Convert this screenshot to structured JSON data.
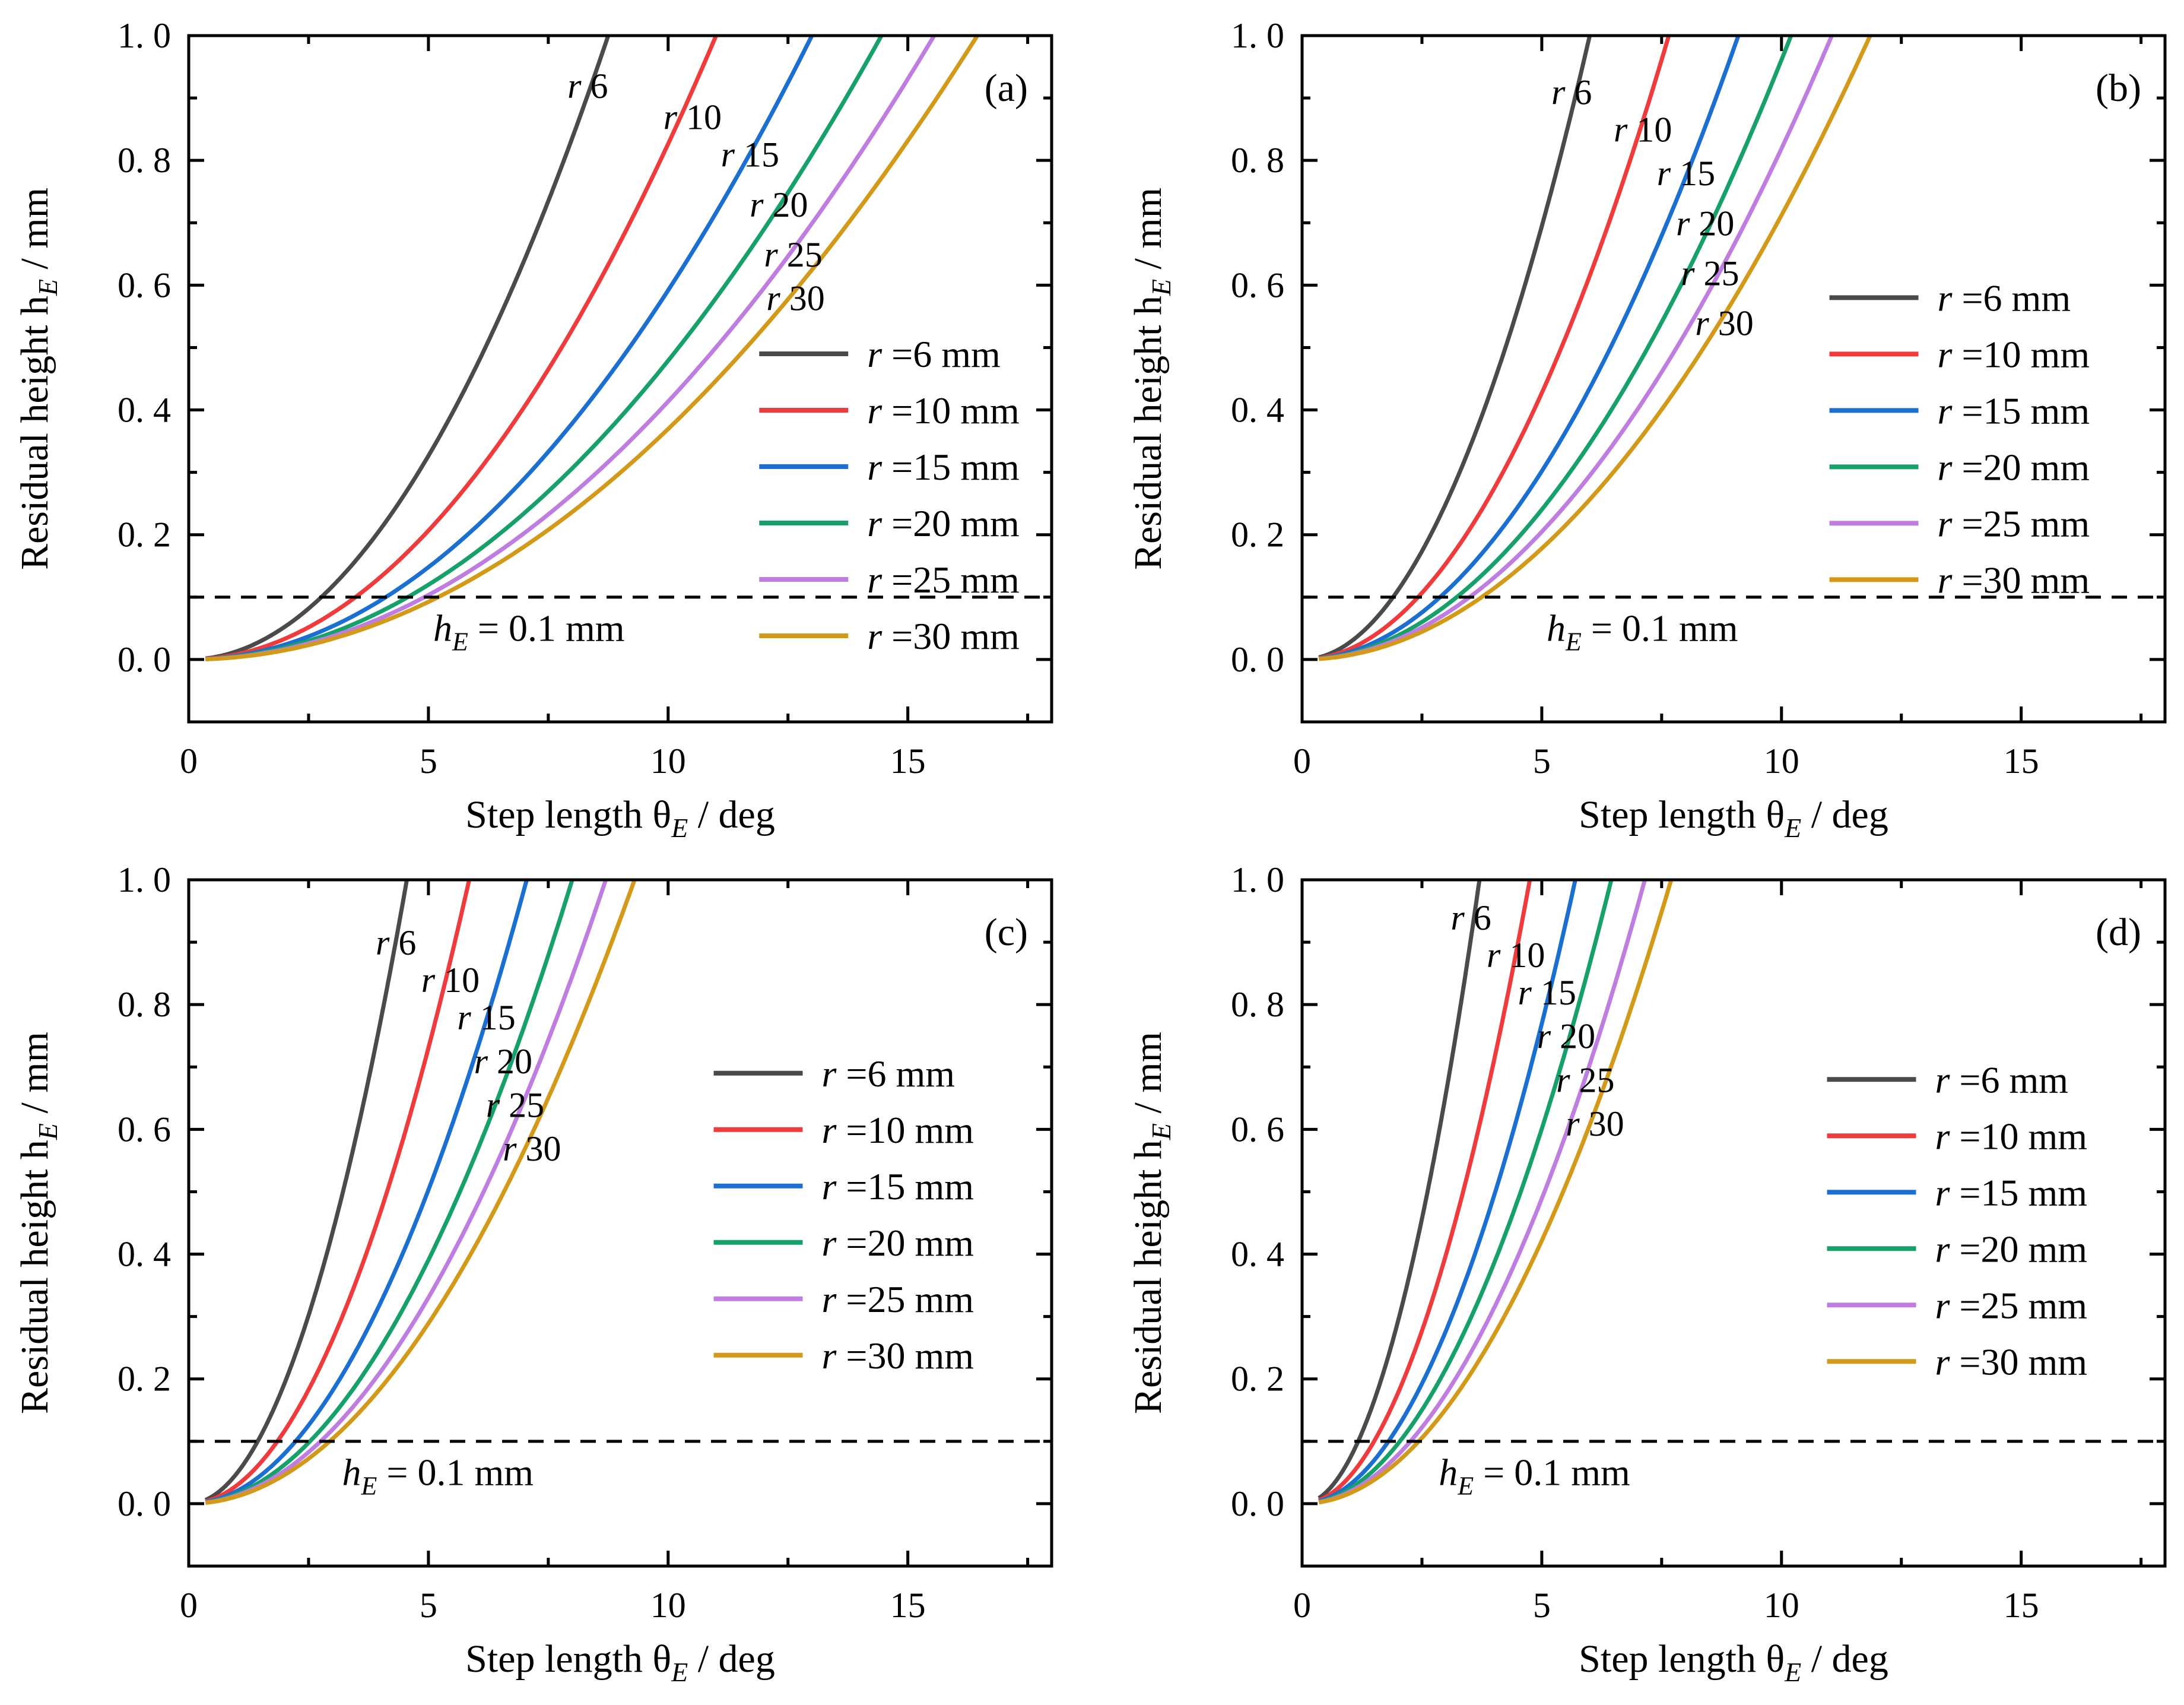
{
  "figure": {
    "colors": {
      "r6": "#4a4a4a",
      "r10": "#ef3b3b",
      "r15": "#1a6fd1",
      "r20": "#16a06a",
      "r25": "#bf7de0",
      "r30": "#d39a1a",
      "axis": "#000000",
      "threshold": "#000000"
    }
  },
  "chart_data": [
    {
      "id": "a",
      "type": "line",
      "panel_label": "(a)",
      "xlabel": "Step length θ",
      "xlabel_sub": "E",
      "xlabel_unit": " / deg",
      "ylabel": "Residual height h",
      "ylabel_sub": "E",
      "ylabel_unit": " / mm",
      "xlim": [
        0,
        18
      ],
      "ylim": [
        -0.1,
        1.0
      ],
      "xticks": [
        0,
        5,
        10,
        15
      ],
      "xtick_labels": [
        "0",
        "5",
        "10",
        "15"
      ],
      "yticks": [
        0.0,
        0.2,
        0.4,
        0.6,
        0.8,
        1.0
      ],
      "ytick_labels": [
        "0. 0",
        "0. 2",
        "0. 4",
        "0. 6",
        "0. 8",
        "1. 0"
      ],
      "threshold": {
        "y": 0.1,
        "label": "h",
        "label_sub": "E",
        "label_rest": " = 0.1 mm",
        "label_x": 5.1,
        "label_y": 0.03
      },
      "legend": {
        "position": "lower-right",
        "x": 11.9,
        "y": 0.49,
        "title_prefix": "r"
      },
      "series": [
        {
          "name": "r =6 mm",
          "label_text": "=6 mm",
          "radius": 6,
          "color_key": "r6",
          "xmax": 8.75,
          "curve_label_r": "r",
          "curve_label_num": "6",
          "label_x": 7.9,
          "label_y": 0.9
        },
        {
          "name": "r =10 mm",
          "label_text": "=10 mm",
          "radius": 10,
          "color_key": "r10",
          "xmax": 11.0,
          "curve_label_r": "r",
          "curve_label_num": "10",
          "label_x": 9.9,
          "label_y": 0.85
        },
        {
          "name": "r =15 mm",
          "label_text": "=15 mm",
          "radius": 15,
          "color_key": "r15",
          "xmax": 13.0,
          "curve_label_r": "r",
          "curve_label_num": "15",
          "label_x": 11.1,
          "label_y": 0.79
        },
        {
          "name": "r =20 mm",
          "label_text": "=20 mm",
          "radius": 20,
          "color_key": "r20",
          "xmax": 14.45,
          "curve_label_r": "r",
          "curve_label_num": "20",
          "label_x": 11.7,
          "label_y": 0.71
        },
        {
          "name": "r =25 mm",
          "label_text": "=25 mm",
          "radius": 25,
          "color_key": "r25",
          "xmax": 15.55,
          "curve_label_r": "r",
          "curve_label_num": "25",
          "label_x": 12.0,
          "label_y": 0.63
        },
        {
          "name": "r =30 mm",
          "label_text": "=30 mm",
          "radius": 30,
          "color_key": "r30",
          "xmax": 16.45,
          "curve_label_r": "r",
          "curve_label_num": "30",
          "label_x": 12.05,
          "label_y": 0.56
        }
      ]
    },
    {
      "id": "b",
      "type": "line",
      "panel_label": "(b)",
      "xlabel": "Step length θ",
      "xlabel_sub": "E",
      "xlabel_unit": " / deg",
      "ylabel": "Residual height h",
      "ylabel_sub": "E",
      "ylabel_unit": " / mm",
      "xlim": [
        0,
        18
      ],
      "ylim": [
        -0.1,
        1.0
      ],
      "xticks": [
        0,
        5,
        10,
        15
      ],
      "xtick_labels": [
        "0",
        "5",
        "10",
        "15"
      ],
      "yticks": [
        0.0,
        0.2,
        0.4,
        0.6,
        0.8,
        1.0
      ],
      "ytick_labels": [
        "0. 0",
        "0. 2",
        "0. 4",
        "0. 6",
        "0. 8",
        "1. 0"
      ],
      "threshold": {
        "y": 0.1,
        "label": "h",
        "label_sub": "E",
        "label_rest": " = 0.1 mm",
        "label_x": 5.1,
        "label_y": 0.03
      },
      "legend": {
        "position": "right",
        "x": 11.0,
        "y": 0.58,
        "title_prefix": "r"
      },
      "series": [
        {
          "name": "r =6 mm",
          "label_text": "=6 mm",
          "radius": 6,
          "color_key": "r6",
          "xmax": 6.0,
          "curve_label_r": "r",
          "curve_label_num": "6",
          "label_x": 5.2,
          "label_y": 0.89
        },
        {
          "name": "r =10 mm",
          "label_text": "=10 mm",
          "radius": 10,
          "color_key": "r10",
          "xmax": 7.65,
          "curve_label_r": "r",
          "curve_label_num": "10",
          "label_x": 6.5,
          "label_y": 0.83
        },
        {
          "name": "r =15 mm",
          "label_text": "=15 mm",
          "radius": 15,
          "color_key": "r15",
          "xmax": 9.1,
          "curve_label_r": "r",
          "curve_label_num": "15",
          "label_x": 7.4,
          "label_y": 0.76
        },
        {
          "name": "r =20 mm",
          "label_text": "=20 mm",
          "radius": 20,
          "color_key": "r20",
          "xmax": 10.2,
          "curve_label_r": "r",
          "curve_label_num": "20",
          "label_x": 7.8,
          "label_y": 0.68
        },
        {
          "name": "r =25 mm",
          "label_text": "=25 mm",
          "radius": 25,
          "color_key": "r25",
          "xmax": 11.05,
          "curve_label_r": "r",
          "curve_label_num": "25",
          "label_x": 7.9,
          "label_y": 0.6
        },
        {
          "name": "r =30 mm",
          "label_text": "=30 mm",
          "radius": 30,
          "color_key": "r30",
          "xmax": 11.85,
          "curve_label_r": "r",
          "curve_label_num": "30",
          "label_x": 8.2,
          "label_y": 0.52
        }
      ]
    },
    {
      "id": "c",
      "type": "line",
      "panel_label": "(c)",
      "xlabel": "Step length θ",
      "xlabel_sub": "E",
      "xlabel_unit": " / deg",
      "ylabel": "Residual height h",
      "ylabel_sub": "E",
      "ylabel_unit": " / mm",
      "xlim": [
        0,
        18
      ],
      "ylim": [
        -0.1,
        1.0
      ],
      "xticks": [
        0,
        5,
        10,
        15
      ],
      "xtick_labels": [
        "0",
        "5",
        "10",
        "15"
      ],
      "yticks": [
        0.0,
        0.2,
        0.4,
        0.6,
        0.8,
        1.0
      ],
      "ytick_labels": [
        "0. 0",
        "0. 2",
        "0. 4",
        "0. 6",
        "0. 8",
        "1. 0"
      ],
      "threshold": {
        "y": 0.1,
        "label": "h",
        "label_sub": "E",
        "label_rest": " = 0.1 mm",
        "label_x": 3.2,
        "label_y": 0.03
      },
      "legend": {
        "position": "center-right",
        "x": 10.95,
        "y": 0.69,
        "title_prefix": "r"
      },
      "series": [
        {
          "name": "r =6 mm",
          "label_text": "=6 mm",
          "radius": 6,
          "color_key": "r6",
          "xmax": 4.55,
          "curve_label_r": "r",
          "curve_label_num": "6",
          "label_x": 3.9,
          "label_y": 0.88
        },
        {
          "name": "r =10 mm",
          "label_text": "=10 mm",
          "radius": 10,
          "color_key": "r10",
          "xmax": 5.85,
          "curve_label_r": "r",
          "curve_label_num": "10",
          "label_x": 4.85,
          "label_y": 0.82
        },
        {
          "name": "r =15 mm",
          "label_text": "=15 mm",
          "radius": 15,
          "color_key": "r15",
          "xmax": 7.05,
          "curve_label_r": "r",
          "curve_label_num": "15",
          "label_x": 5.6,
          "label_y": 0.76
        },
        {
          "name": "r =20 mm",
          "label_text": "=20 mm",
          "radius": 20,
          "color_key": "r20",
          "xmax": 8.0,
          "curve_label_r": "r",
          "curve_label_num": "20",
          "label_x": 5.95,
          "label_y": 0.69
        },
        {
          "name": "r =25 mm",
          "label_text": "=25 mm",
          "radius": 25,
          "color_key": "r25",
          "xmax": 8.7,
          "curve_label_r": "r",
          "curve_label_num": "25",
          "label_x": 6.2,
          "label_y": 0.62
        },
        {
          "name": "r =30 mm",
          "label_text": "=30 mm",
          "radius": 30,
          "color_key": "r30",
          "xmax": 9.3,
          "curve_label_r": "r",
          "curve_label_num": "30",
          "label_x": 6.55,
          "label_y": 0.55
        }
      ]
    },
    {
      "id": "d",
      "type": "line",
      "panel_label": "(d)",
      "xlabel": "Step length θ",
      "xlabel_sub": "E",
      "xlabel_unit": " / deg",
      "ylabel": "Residual height h",
      "ylabel_sub": "E",
      "ylabel_unit": " / mm",
      "xlim": [
        0,
        18
      ],
      "ylim": [
        -0.1,
        1.0
      ],
      "xticks": [
        0,
        5,
        10,
        15
      ],
      "xtick_labels": [
        "0",
        "5",
        "10",
        "15"
      ],
      "yticks": [
        0.0,
        0.2,
        0.4,
        0.6,
        0.8,
        1.0
      ],
      "ytick_labels": [
        "0. 0",
        "0. 2",
        "0. 4",
        "0. 6",
        "0. 8",
        "1. 0"
      ],
      "threshold": {
        "y": 0.1,
        "label": "h",
        "label_sub": "E",
        "label_rest": " = 0.1 mm",
        "label_x": 2.85,
        "label_y": 0.03
      },
      "legend": {
        "position": "center-right",
        "x": 10.95,
        "y": 0.68,
        "title_prefix": "r"
      },
      "series": [
        {
          "name": "r =6 mm",
          "label_text": "=6 mm",
          "radius": 6,
          "color_key": "r6",
          "xmax": 3.7,
          "curve_label_r": "r",
          "curve_label_num": "6",
          "label_x": 3.1,
          "label_y": 0.92
        },
        {
          "name": "r =10 mm",
          "label_text": "=10 mm",
          "radius": 10,
          "color_key": "r10",
          "xmax": 4.75,
          "curve_label_r": "r",
          "curve_label_num": "10",
          "label_x": 3.85,
          "label_y": 0.86
        },
        {
          "name": "r =15 mm",
          "label_text": "=15 mm",
          "radius": 15,
          "color_key": "r15",
          "xmax": 5.7,
          "curve_label_r": "r",
          "curve_label_num": "15",
          "label_x": 4.5,
          "label_y": 0.8
        },
        {
          "name": "r =20 mm",
          "label_text": "=20 mm",
          "radius": 20,
          "color_key": "r20",
          "xmax": 6.45,
          "curve_label_r": "r",
          "curve_label_num": "20",
          "label_x": 4.9,
          "label_y": 0.73
        },
        {
          "name": "r =25 mm",
          "label_text": "=25 mm",
          "radius": 25,
          "color_key": "r25",
          "xmax": 7.15,
          "curve_label_r": "r",
          "curve_label_num": "25",
          "label_x": 5.3,
          "label_y": 0.66
        },
        {
          "name": "r =30 mm",
          "label_text": "=30 mm",
          "radius": 30,
          "color_key": "r30",
          "xmax": 7.7,
          "curve_label_r": "r",
          "curve_label_num": "30",
          "label_x": 5.5,
          "label_y": 0.59
        }
      ]
    }
  ]
}
